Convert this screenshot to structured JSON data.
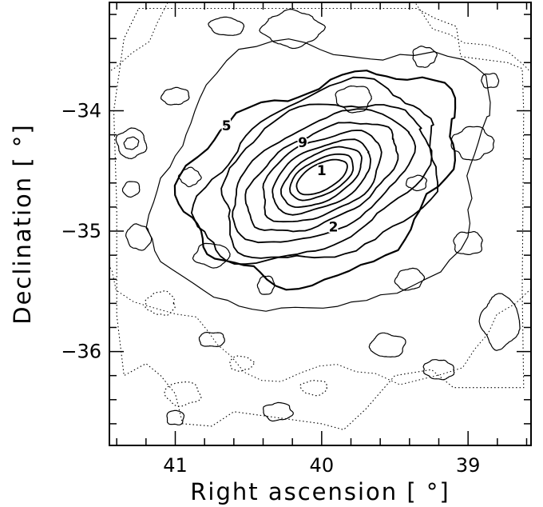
{
  "chart_data": {
    "type": "contour",
    "xlabel": "Right ascension [ °]",
    "ylabel": "Declination [ °]",
    "xlim": [
      41.45,
      38.57
    ],
    "ylim": [
      -36.78,
      -33.1
    ],
    "x_ticks": [
      {
        "value": 41,
        "label": "41"
      },
      {
        "value": 40,
        "label": "40"
      },
      {
        "value": 39,
        "label": "39"
      }
    ],
    "y_ticks": [
      {
        "value": -34,
        "label": "−34"
      },
      {
        "value": -35,
        "label": "−35"
      },
      {
        "value": -36,
        "label": "−36"
      }
    ],
    "x_minor_step": 0.2,
    "y_minor_step": 0.2,
    "center": {
      "ra": 40.0,
      "dec": -34.55
    },
    "contour_level_labels": [
      {
        "text": "1",
        "ra": 40.0,
        "dec": -34.5
      },
      {
        "text": "9",
        "ra": 40.13,
        "dec": -34.27
      },
      {
        "text": "5",
        "ra": 40.65,
        "dec": -34.13
      },
      {
        "text": "2",
        "ra": 39.92,
        "dec": -34.97
      }
    ],
    "contours": [
      {
        "level": 1,
        "semi_major_deg": 0.19,
        "semi_minor_deg": 0.09,
        "angle_deg": -28,
        "style": "solid",
        "stroke": 1.8
      },
      {
        "level": 2,
        "semi_major_deg": 0.24,
        "semi_minor_deg": 0.12,
        "angle_deg": -28,
        "style": "solid",
        "stroke": 1.8
      },
      {
        "level": 3,
        "semi_major_deg": 0.3,
        "semi_minor_deg": 0.16,
        "angle_deg": -28,
        "style": "solid",
        "stroke": 1.8
      },
      {
        "level": 4,
        "semi_major_deg": 0.37,
        "semi_minor_deg": 0.2,
        "angle_deg": -28,
        "style": "solid",
        "stroke": 1.8
      },
      {
        "level": 5,
        "semi_major_deg": 0.45,
        "semi_minor_deg": 0.25,
        "angle_deg": -28,
        "style": "solid",
        "stroke": 1.8
      },
      {
        "level": 6,
        "semi_major_deg": 0.54,
        "semi_minor_deg": 0.31,
        "angle_deg": -28,
        "style": "solid",
        "stroke": 1.8
      },
      {
        "level": 7,
        "semi_major_deg": 0.64,
        "semi_minor_deg": 0.38,
        "angle_deg": -27,
        "style": "solid",
        "stroke": 1.8
      },
      {
        "level": 8,
        "semi_major_deg": 0.75,
        "semi_minor_deg": 0.46,
        "angle_deg": -26,
        "style": "solid",
        "stroke": 1.8
      },
      {
        "level": 9,
        "semi_major_deg": 0.86,
        "semi_minor_deg": 0.54,
        "angle_deg": -25,
        "style": "solid",
        "stroke": 1.8
      },
      {
        "level": 10,
        "semi_major_deg": 0.98,
        "semi_minor_deg": 0.64,
        "angle_deg": -24,
        "style": "solid",
        "stroke": 2.2
      },
      {
        "level": 11,
        "semi_major_deg": 1.18,
        "semi_minor_deg": 0.9,
        "angle_deg": -20,
        "style": "solid",
        "stroke": 1.2
      },
      {
        "level": 12,
        "semi_major_deg": 1.55,
        "semi_minor_deg": 1.45,
        "angle_deg": -10,
        "style": "dotted",
        "stroke": 1.0
      }
    ],
    "islands": [
      {
        "ra": 41.3,
        "dec": -34.27,
        "rx": 0.1,
        "ry": 0.1,
        "style": "solid"
      },
      {
        "ra": 41.3,
        "dec": -34.27,
        "rx": 0.05,
        "ry": 0.04,
        "style": "solid"
      },
      {
        "ra": 38.97,
        "dec": -34.27,
        "rx": 0.14,
        "ry": 0.11,
        "style": "solid"
      },
      {
        "ra": 38.78,
        "dec": -35.75,
        "rx": 0.13,
        "ry": 0.18,
        "style": "solid"
      },
      {
        "ra": 39.78,
        "dec": -33.9,
        "rx": 0.12,
        "ry": 0.09,
        "style": "solid"
      },
      {
        "ra": 40.2,
        "dec": -33.32,
        "rx": 0.2,
        "ry": 0.12,
        "style": "solid"
      },
      {
        "ra": 40.65,
        "dec": -33.3,
        "rx": 0.12,
        "ry": 0.06,
        "style": "solid"
      },
      {
        "ra": 40.38,
        "dec": -35.45,
        "rx": 0.06,
        "ry": 0.06,
        "style": "solid"
      },
      {
        "ra": 41.0,
        "dec": -33.88,
        "rx": 0.09,
        "ry": 0.06,
        "style": "solid"
      },
      {
        "ra": 40.75,
        "dec": -35.2,
        "rx": 0.12,
        "ry": 0.08,
        "style": "solid"
      },
      {
        "ra": 41.1,
        "dec": -35.6,
        "rx": 0.1,
        "ry": 0.08,
        "style": "dotted"
      },
      {
        "ra": 39.4,
        "dec": -35.4,
        "rx": 0.1,
        "ry": 0.07,
        "style": "solid"
      },
      {
        "ra": 39.0,
        "dec": -35.1,
        "rx": 0.1,
        "ry": 0.08,
        "style": "solid"
      },
      {
        "ra": 41.25,
        "dec": -35.05,
        "rx": 0.08,
        "ry": 0.09,
        "style": "solid"
      },
      {
        "ra": 40.95,
        "dec": -36.35,
        "rx": 0.12,
        "ry": 0.08,
        "style": "dotted"
      },
      {
        "ra": 40.3,
        "dec": -36.5,
        "rx": 0.1,
        "ry": 0.06,
        "style": "solid"
      },
      {
        "ra": 40.05,
        "dec": -36.3,
        "rx": 0.09,
        "ry": 0.05,
        "style": "dotted"
      },
      {
        "ra": 41.0,
        "dec": -36.55,
        "rx": 0.06,
        "ry": 0.05,
        "style": "solid"
      },
      {
        "ra": 39.2,
        "dec": -36.15,
        "rx": 0.1,
        "ry": 0.07,
        "style": "solid"
      },
      {
        "ra": 39.55,
        "dec": -35.95,
        "rx": 0.12,
        "ry": 0.08,
        "style": "solid"
      },
      {
        "ra": 40.75,
        "dec": -35.9,
        "rx": 0.09,
        "ry": 0.05,
        "style": "solid"
      },
      {
        "ra": 39.3,
        "dec": -33.55,
        "rx": 0.08,
        "ry": 0.07,
        "style": "solid"
      },
      {
        "ra": 38.85,
        "dec": -33.75,
        "rx": 0.06,
        "ry": 0.05,
        "style": "solid"
      },
      {
        "ra": 40.9,
        "dec": -34.55,
        "rx": 0.07,
        "ry": 0.06,
        "style": "solid"
      },
      {
        "ra": 39.35,
        "dec": -34.6,
        "rx": 0.07,
        "ry": 0.05,
        "style": "solid"
      },
      {
        "ra": 41.3,
        "dec": -34.65,
        "rx": 0.06,
        "ry": 0.05,
        "style": "solid"
      },
      {
        "ra": 40.55,
        "dec": -36.1,
        "rx": 0.08,
        "ry": 0.05,
        "style": "dotted"
      }
    ],
    "survey_outline": [
      [
        41.25,
        -33.15
      ],
      [
        39.35,
        -33.15
      ],
      [
        39.23,
        -33.23
      ],
      [
        39.08,
        -33.3
      ],
      [
        39.05,
        -33.55
      ],
      [
        38.73,
        -33.6
      ],
      [
        38.63,
        -33.65
      ],
      [
        38.62,
        -34.0
      ],
      [
        38.63,
        -35.5
      ],
      [
        38.62,
        -36.3
      ],
      [
        39.1,
        -36.3
      ],
      [
        39.25,
        -36.15
      ],
      [
        39.5,
        -36.2
      ],
      [
        39.7,
        -36.48
      ],
      [
        39.85,
        -36.65
      ],
      [
        40.0,
        -36.6
      ],
      [
        40.6,
        -36.5
      ],
      [
        40.75,
        -36.62
      ],
      [
        40.95,
        -36.6
      ],
      [
        41.0,
        -36.35
      ],
      [
        41.1,
        -36.2
      ],
      [
        41.2,
        -36.1
      ],
      [
        41.35,
        -36.2
      ],
      [
        41.4,
        -35.7
      ],
      [
        41.4,
        -34.8
      ],
      [
        41.42,
        -34.0
      ],
      [
        41.35,
        -33.4
      ]
    ]
  }
}
